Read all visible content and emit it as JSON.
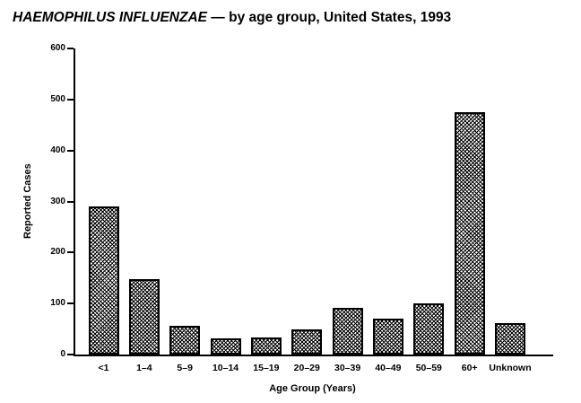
{
  "title": {
    "italic": "HAEMOPHILUS INFLUENZAE",
    "rest": " — by age group, United States, 1993"
  },
  "chart_data": {
    "type": "bar",
    "title": "HAEMOPHILUS INFLUENZAE — by age group, United States, 1993",
    "categories": [
      "<1",
      "1–4",
      "5–9",
      "10–14",
      "15–19",
      "20–29",
      "30–39",
      "40–49",
      "50–59",
      "60+",
      "Unknown"
    ],
    "values": [
      290,
      148,
      57,
      31,
      33,
      50,
      92,
      71,
      100,
      475,
      62
    ],
    "xlabel": "Age Group (Years)",
    "ylabel": "Reported Cases",
    "ylim": [
      0,
      600
    ],
    "yticks": [
      0,
      100,
      200,
      300,
      400,
      500,
      600
    ],
    "grid": false,
    "legend": "none",
    "bar_fill_pattern": "checkered-hatch",
    "bar_outline_color": "#000000",
    "background_color": "#ffffff",
    "text_color": "#000000"
  }
}
